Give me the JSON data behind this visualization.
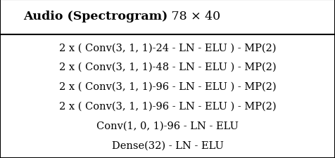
{
  "title_bold": "Audio (Spectrogram)",
  "title_normal": " 78 × 40",
  "rows": [
    "2 x ( Conv(3, 1, 1)-24 - LN - ELU ) - MP(2)",
    "2 x ( Conv(3, 1, 1)-48 - LN - ELU ) - MP(2)",
    "2 x ( Conv(3, 1, 1)-96 - LN - ELU ) - MP(2)",
    "2 x ( Conv(3, 1, 1)-96 - LN - ELU ) - MP(2)",
    "Conv(1, 0, 1)-96 - LN - ELU",
    "Dense(32) - LN - ELU"
  ],
  "bg_color": "#ffffff",
  "border_color": "#000000",
  "text_color": "#000000",
  "title_fontsize": 12.5,
  "body_fontsize": 10.5
}
